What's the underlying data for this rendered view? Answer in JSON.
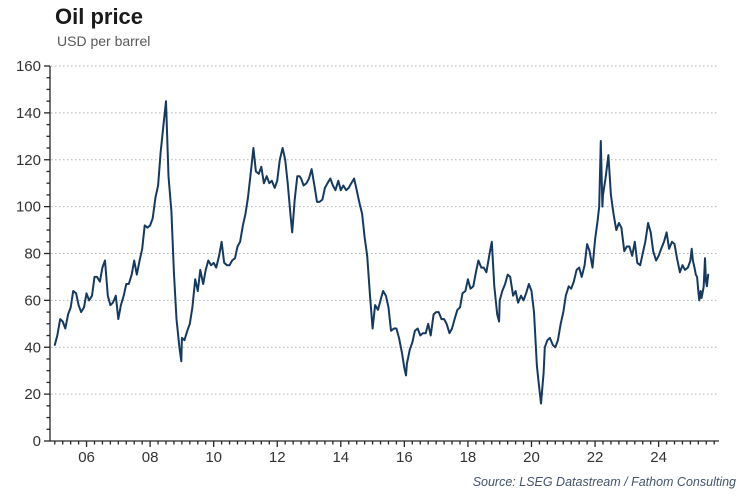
{
  "header": {
    "title": "Oil price",
    "subtitle": "USD per barrel"
  },
  "footer": {
    "source": "Source: LSEG Datastream / Fathom Consulting"
  },
  "colors": {
    "line": "#153a62",
    "grid": "#b3b3b3",
    "axis": "#262626",
    "tick_text": "#333333",
    "title": "#1a1a1a",
    "subtitle": "#595959",
    "source": "#44546a"
  },
  "chart_data": {
    "type": "line",
    "title": "Oil price",
    "ylabel": "USD per barrel",
    "source": "Source: LSEG Datastream / Fathom Consulting",
    "xlim": [
      2004.85,
      2025.9
    ],
    "ylim": [
      0,
      160
    ],
    "y_ticks": [
      0,
      20,
      40,
      60,
      80,
      100,
      120,
      140,
      160
    ],
    "y_minor_step": 5,
    "x_tick_years": [
      2006,
      2008,
      2010,
      2012,
      2014,
      2016,
      2018,
      2020,
      2022,
      2024
    ],
    "x_tick_labels": [
      "06",
      "08",
      "10",
      "12",
      "14",
      "16",
      "18",
      "20",
      "22",
      "24"
    ],
    "x_minor_step": 0.25,
    "grid": "horizontal-dotted",
    "legend_position": "none",
    "series": [
      {
        "name": "Oil price (USD per barrel)",
        "color": "#153a62",
        "points": [
          [
            2005.0,
            41
          ],
          [
            2005.08,
            45
          ],
          [
            2005.17,
            52
          ],
          [
            2005.25,
            51
          ],
          [
            2005.33,
            48
          ],
          [
            2005.42,
            54
          ],
          [
            2005.5,
            57
          ],
          [
            2005.58,
            64
          ],
          [
            2005.67,
            63
          ],
          [
            2005.75,
            58
          ],
          [
            2005.83,
            55
          ],
          [
            2005.92,
            57
          ],
          [
            2006.0,
            63
          ],
          [
            2006.08,
            60
          ],
          [
            2006.17,
            62
          ],
          [
            2006.25,
            70
          ],
          [
            2006.33,
            70
          ],
          [
            2006.42,
            68
          ],
          [
            2006.5,
            74
          ],
          [
            2006.58,
            77
          ],
          [
            2006.67,
            62
          ],
          [
            2006.75,
            58
          ],
          [
            2006.83,
            59
          ],
          [
            2006.92,
            62
          ],
          [
            2007.0,
            52
          ],
          [
            2007.08,
            58
          ],
          [
            2007.17,
            62
          ],
          [
            2007.25,
            67
          ],
          [
            2007.33,
            67
          ],
          [
            2007.42,
            71
          ],
          [
            2007.5,
            77
          ],
          [
            2007.58,
            71
          ],
          [
            2007.67,
            77
          ],
          [
            2007.75,
            82
          ],
          [
            2007.83,
            92
          ],
          [
            2007.92,
            91
          ],
          [
            2008.0,
            92
          ],
          [
            2008.08,
            95
          ],
          [
            2008.17,
            104
          ],
          [
            2008.25,
            109
          ],
          [
            2008.33,
            123
          ],
          [
            2008.42,
            135
          ],
          [
            2008.5,
            145
          ],
          [
            2008.58,
            113
          ],
          [
            2008.67,
            98
          ],
          [
            2008.75,
            72
          ],
          [
            2008.83,
            52
          ],
          [
            2008.92,
            40
          ],
          [
            2008.98,
            34
          ],
          [
            2009.0,
            44
          ],
          [
            2009.08,
            43
          ],
          [
            2009.17,
            47
          ],
          [
            2009.25,
            50
          ],
          [
            2009.33,
            57
          ],
          [
            2009.42,
            69
          ],
          [
            2009.5,
            64
          ],
          [
            2009.58,
            73
          ],
          [
            2009.67,
            67
          ],
          [
            2009.75,
            73
          ],
          [
            2009.83,
            77
          ],
          [
            2009.92,
            75
          ],
          [
            2010.0,
            76
          ],
          [
            2010.08,
            74
          ],
          [
            2010.17,
            79
          ],
          [
            2010.25,
            85
          ],
          [
            2010.33,
            76
          ],
          [
            2010.42,
            75
          ],
          [
            2010.5,
            75
          ],
          [
            2010.58,
            77
          ],
          [
            2010.67,
            78
          ],
          [
            2010.75,
            83
          ],
          [
            2010.83,
            85
          ],
          [
            2010.92,
            92
          ],
          [
            2011.0,
            97
          ],
          [
            2011.08,
            104
          ],
          [
            2011.17,
            115
          ],
          [
            2011.25,
            125
          ],
          [
            2011.33,
            115
          ],
          [
            2011.42,
            114
          ],
          [
            2011.5,
            117
          ],
          [
            2011.58,
            110
          ],
          [
            2011.67,
            113
          ],
          [
            2011.75,
            110
          ],
          [
            2011.83,
            111
          ],
          [
            2011.92,
            108
          ],
          [
            2012.0,
            111
          ],
          [
            2012.08,
            120
          ],
          [
            2012.17,
            125
          ],
          [
            2012.25,
            120
          ],
          [
            2012.33,
            110
          ],
          [
            2012.42,
            96
          ],
          [
            2012.47,
            89
          ],
          [
            2012.55,
            103
          ],
          [
            2012.63,
            113
          ],
          [
            2012.7,
            113
          ],
          [
            2012.75,
            112
          ],
          [
            2012.83,
            109
          ],
          [
            2012.92,
            110
          ],
          [
            2013.0,
            112
          ],
          [
            2013.08,
            116
          ],
          [
            2013.17,
            109
          ],
          [
            2013.25,
            102
          ],
          [
            2013.33,
            102
          ],
          [
            2013.42,
            103
          ],
          [
            2013.5,
            108
          ],
          [
            2013.58,
            110
          ],
          [
            2013.67,
            112
          ],
          [
            2013.75,
            109
          ],
          [
            2013.83,
            107
          ],
          [
            2013.92,
            111
          ],
          [
            2014.0,
            107
          ],
          [
            2014.08,
            109
          ],
          [
            2014.17,
            107
          ],
          [
            2014.25,
            108
          ],
          [
            2014.33,
            110
          ],
          [
            2014.42,
            112
          ],
          [
            2014.5,
            107
          ],
          [
            2014.58,
            102
          ],
          [
            2014.67,
            97
          ],
          [
            2014.75,
            87
          ],
          [
            2014.83,
            79
          ],
          [
            2014.92,
            62
          ],
          [
            2015.0,
            48
          ],
          [
            2015.08,
            58
          ],
          [
            2015.17,
            56
          ],
          [
            2015.25,
            60
          ],
          [
            2015.33,
            64
          ],
          [
            2015.42,
            62
          ],
          [
            2015.5,
            57
          ],
          [
            2015.58,
            47
          ],
          [
            2015.67,
            48
          ],
          [
            2015.75,
            48
          ],
          [
            2015.83,
            44
          ],
          [
            2015.92,
            38
          ],
          [
            2016.0,
            31
          ],
          [
            2016.05,
            28
          ],
          [
            2016.08,
            33
          ],
          [
            2016.17,
            39
          ],
          [
            2016.25,
            42
          ],
          [
            2016.33,
            47
          ],
          [
            2016.42,
            48
          ],
          [
            2016.5,
            45
          ],
          [
            2016.58,
            46
          ],
          [
            2016.67,
            46
          ],
          [
            2016.75,
            50
          ],
          [
            2016.83,
            45
          ],
          [
            2016.92,
            54
          ],
          [
            2017.0,
            55
          ],
          [
            2017.08,
            55
          ],
          [
            2017.17,
            52
          ],
          [
            2017.25,
            52
          ],
          [
            2017.33,
            50
          ],
          [
            2017.42,
            46
          ],
          [
            2017.5,
            48
          ],
          [
            2017.58,
            52
          ],
          [
            2017.67,
            56
          ],
          [
            2017.75,
            57
          ],
          [
            2017.83,
            63
          ],
          [
            2017.92,
            64
          ],
          [
            2018.0,
            69
          ],
          [
            2018.08,
            65
          ],
          [
            2018.17,
            66
          ],
          [
            2018.25,
            72
          ],
          [
            2018.33,
            77
          ],
          [
            2018.42,
            74
          ],
          [
            2018.5,
            74
          ],
          [
            2018.58,
            72
          ],
          [
            2018.67,
            79
          ],
          [
            2018.75,
            85
          ],
          [
            2018.83,
            66
          ],
          [
            2018.92,
            54
          ],
          [
            2018.98,
            51
          ],
          [
            2019.0,
            60
          ],
          [
            2019.08,
            64
          ],
          [
            2019.17,
            67
          ],
          [
            2019.25,
            71
          ],
          [
            2019.33,
            70
          ],
          [
            2019.42,
            62
          ],
          [
            2019.5,
            64
          ],
          [
            2019.58,
            59
          ],
          [
            2019.67,
            62
          ],
          [
            2019.75,
            60
          ],
          [
            2019.83,
            63
          ],
          [
            2019.92,
            67
          ],
          [
            2020.0,
            64
          ],
          [
            2020.08,
            55
          ],
          [
            2020.17,
            32
          ],
          [
            2020.25,
            22
          ],
          [
            2020.3,
            16
          ],
          [
            2020.38,
            29
          ],
          [
            2020.42,
            40
          ],
          [
            2020.5,
            43
          ],
          [
            2020.58,
            44
          ],
          [
            2020.67,
            41
          ],
          [
            2020.75,
            40
          ],
          [
            2020.83,
            43
          ],
          [
            2020.92,
            50
          ],
          [
            2021.0,
            55
          ],
          [
            2021.08,
            62
          ],
          [
            2021.17,
            66
          ],
          [
            2021.25,
            65
          ],
          [
            2021.33,
            68
          ],
          [
            2021.42,
            73
          ],
          [
            2021.5,
            74
          ],
          [
            2021.58,
            70
          ],
          [
            2021.67,
            75
          ],
          [
            2021.75,
            84
          ],
          [
            2021.83,
            81
          ],
          [
            2021.92,
            74
          ],
          [
            2022.0,
            86
          ],
          [
            2022.08,
            94
          ],
          [
            2022.13,
            100
          ],
          [
            2022.18,
            128
          ],
          [
            2022.23,
            100
          ],
          [
            2022.25,
            105
          ],
          [
            2022.33,
            112
          ],
          [
            2022.42,
            122
          ],
          [
            2022.5,
            105
          ],
          [
            2022.58,
            97
          ],
          [
            2022.67,
            90
          ],
          [
            2022.75,
            93
          ],
          [
            2022.83,
            91
          ],
          [
            2022.92,
            81
          ],
          [
            2023.0,
            83
          ],
          [
            2023.08,
            83
          ],
          [
            2023.17,
            79
          ],
          [
            2023.25,
            85
          ],
          [
            2023.33,
            76
          ],
          [
            2023.42,
            75
          ],
          [
            2023.5,
            80
          ],
          [
            2023.58,
            85
          ],
          [
            2023.67,
            93
          ],
          [
            2023.75,
            89
          ],
          [
            2023.83,
            81
          ],
          [
            2023.92,
            77
          ],
          [
            2024.0,
            79
          ],
          [
            2024.08,
            82
          ],
          [
            2024.17,
            85
          ],
          [
            2024.25,
            89
          ],
          [
            2024.33,
            82
          ],
          [
            2024.42,
            85
          ],
          [
            2024.5,
            84
          ],
          [
            2024.58,
            78
          ],
          [
            2024.67,
            72
          ],
          [
            2024.75,
            75
          ],
          [
            2024.83,
            73
          ],
          [
            2024.92,
            74
          ],
          [
            2025.0,
            77
          ],
          [
            2025.04,
            82
          ],
          [
            2025.08,
            77
          ],
          [
            2025.13,
            74
          ],
          [
            2025.17,
            71
          ],
          [
            2025.21,
            70
          ],
          [
            2025.25,
            64
          ],
          [
            2025.28,
            60
          ],
          [
            2025.32,
            64
          ],
          [
            2025.35,
            61
          ],
          [
            2025.38,
            63
          ],
          [
            2025.42,
            66
          ],
          [
            2025.46,
            78
          ],
          [
            2025.49,
            68
          ],
          [
            2025.52,
            66
          ],
          [
            2025.56,
            71
          ]
        ]
      }
    ]
  }
}
